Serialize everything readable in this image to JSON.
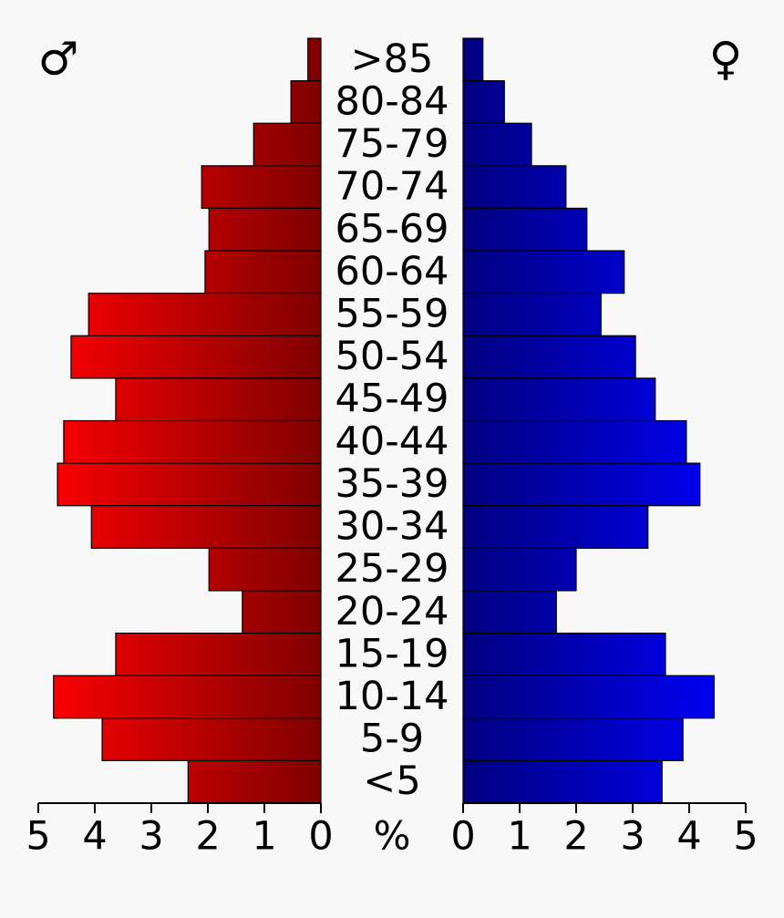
{
  "chart_data": {
    "type": "population_pyramid",
    "categories": [
      ">85",
      "80-84",
      "75-79",
      "70-74",
      "65-69",
      "60-64",
      "55-59",
      "50-54",
      "45-49",
      "40-44",
      "35-39",
      "30-34",
      "25-29",
      "20-24",
      "15-19",
      "10-14",
      "5-9",
      "<5"
    ],
    "series": [
      {
        "name": "♂",
        "color": "#ff0000",
        "values": [
          0.23,
          0.53,
          1.19,
          2.11,
          1.98,
          2.05,
          4.11,
          4.42,
          3.63,
          4.55,
          4.66,
          4.06,
          1.98,
          1.39,
          3.63,
          4.73,
          3.87,
          2.35
        ]
      },
      {
        "name": "♀",
        "color": "#0000ff",
        "values": [
          0.35,
          0.73,
          1.21,
          1.82,
          2.19,
          2.85,
          2.44,
          3.05,
          3.4,
          3.95,
          4.19,
          3.27,
          2.0,
          1.65,
          3.58,
          4.44,
          3.89,
          3.52
        ]
      }
    ],
    "xlabel": "%",
    "xlim": [
      0,
      5
    ],
    "xticks": [
      0,
      1,
      2,
      3,
      4,
      5
    ]
  }
}
